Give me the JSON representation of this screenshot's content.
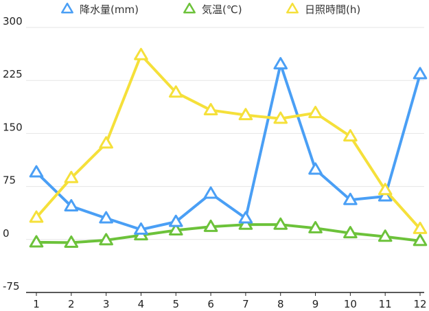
{
  "chart_data": {
    "type": "line",
    "title": "",
    "xlabel": "",
    "ylabel": "",
    "categories": [
      "1",
      "2",
      "3",
      "4",
      "5",
      "6",
      "7",
      "8",
      "9",
      "10",
      "11",
      "12"
    ],
    "ylim": [
      -75,
      300
    ],
    "yticks": [
      300,
      225,
      150,
      75,
      0,
      -75
    ],
    "grid": true,
    "legend_position": "top",
    "series": [
      {
        "name": "降水量(mm)",
        "color": "#4a9ff5",
        "values": [
          95,
          47,
          30,
          14,
          25,
          65,
          30,
          248,
          99,
          56,
          61,
          234
        ]
      },
      {
        "name": "気温(℃)",
        "color": "#6cc23a",
        "values": [
          -4,
          -4.5,
          -1,
          6,
          13,
          18,
          21,
          21,
          16,
          9,
          4,
          -2
        ]
      },
      {
        "name": "日照時間(h)",
        "color": "#f5e03a",
        "values": [
          31,
          87,
          136,
          261,
          208,
          183,
          176,
          171,
          179,
          146,
          70,
          15
        ]
      }
    ]
  }
}
